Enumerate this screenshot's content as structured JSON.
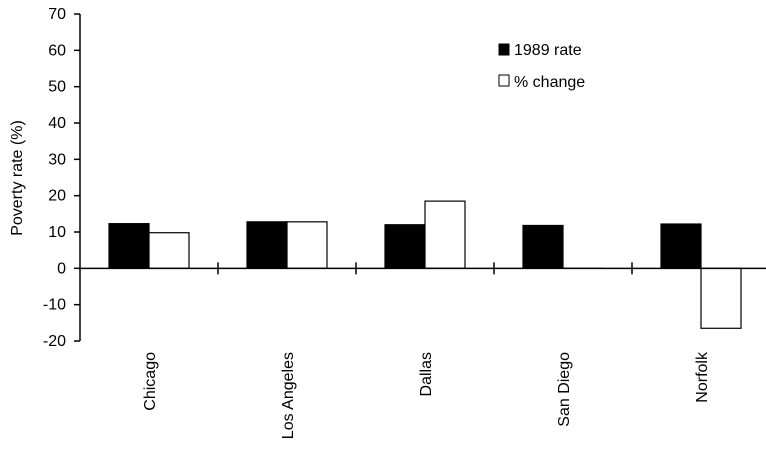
{
  "chart_data": {
    "type": "bar",
    "title": "",
    "xlabel": "",
    "ylabel": "Poverty rate (%)",
    "ylim": [
      -20,
      70
    ],
    "yticks": [
      -20,
      -10,
      0,
      10,
      20,
      30,
      40,
      50,
      60,
      70
    ],
    "categories": [
      "Chicago",
      "Los Angeles",
      "Dallas",
      "San Diego",
      "Norfolk"
    ],
    "series": [
      {
        "name": "1989 rate",
        "color": "#000000",
        "values": [
          12.3,
          12.8,
          12.0,
          11.8,
          12.2
        ]
      },
      {
        "name": "% change",
        "color": "#ffffff",
        "values": [
          9.8,
          12.8,
          18.5,
          0,
          -16.5
        ]
      }
    ],
    "legend_position": "top-right",
    "grid": false
  }
}
